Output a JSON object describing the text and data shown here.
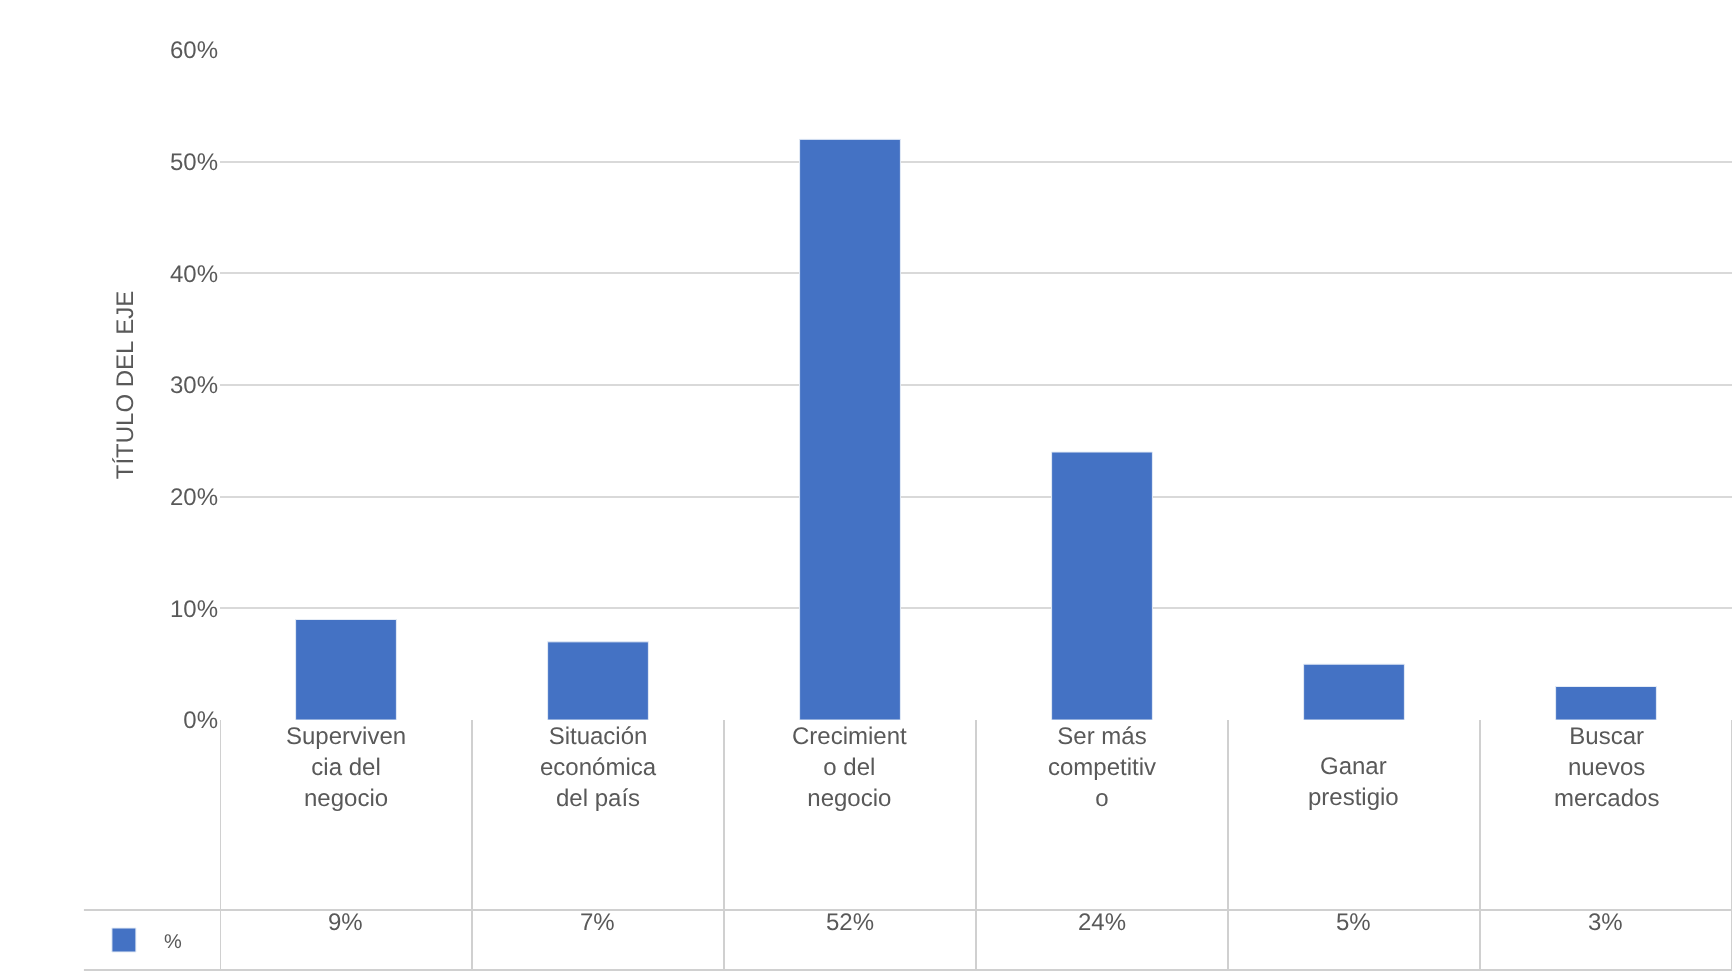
{
  "chart_data": {
    "type": "bar",
    "ylabel": "TÍTULO DEL EJE",
    "categories": [
      "Superviven\ncia del\nnegocio",
      "Situación\neconómica\ndel país",
      "Crecimient\no del\nnegocio",
      "Ser más\ncompetitiv\no",
      "Ganar\nprestigio",
      "Buscar\nnuevos\nmercados"
    ],
    "series": [
      {
        "name": "%",
        "color": "#4472c4",
        "values": [
          9,
          7,
          52,
          24,
          5,
          3
        ],
        "value_labels": [
          "9%",
          "7%",
          "52%",
          "24%",
          "5%",
          "3%"
        ]
      }
    ],
    "ylim": [
      0,
      60
    ],
    "yticks": [
      {
        "value": 0,
        "label": "0%"
      },
      {
        "value": 10,
        "label": "10%"
      },
      {
        "value": 20,
        "label": "20%"
      },
      {
        "value": 30,
        "label": "30%"
      },
      {
        "value": 40,
        "label": "40%"
      },
      {
        "value": 50,
        "label": "50%"
      },
      {
        "value": 60,
        "label": "60%"
      }
    ],
    "grid": "y",
    "legend": "bottom left",
    "tick_labels": "y"
  }
}
